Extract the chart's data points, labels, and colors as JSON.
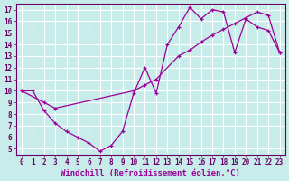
{
  "xlabel": "Windchill (Refroidissement éolien,°C)",
  "bg_color": "#c8ecea",
  "grid_color": "#ffffff",
  "line_color": "#990099",
  "xlim": [
    -0.5,
    23.5
  ],
  "ylim": [
    4.5,
    17.5
  ],
  "xticks": [
    0,
    1,
    2,
    3,
    4,
    5,
    6,
    7,
    8,
    9,
    10,
    11,
    12,
    13,
    14,
    15,
    16,
    17,
    18,
    19,
    20,
    21,
    22,
    23
  ],
  "yticks": [
    5,
    6,
    7,
    8,
    9,
    10,
    11,
    12,
    13,
    14,
    15,
    16,
    17
  ],
  "curve1_x": [
    0,
    1,
    2,
    3,
    4,
    5,
    6,
    7,
    8,
    9,
    10,
    11,
    12,
    13,
    14,
    15,
    16,
    17,
    18,
    19,
    20,
    21,
    22,
    23
  ],
  "curve1_y": [
    10,
    10,
    8.3,
    7.2,
    6.5,
    6.0,
    5.5,
    4.8,
    5.3,
    6.5,
    9.8,
    12.0,
    9.8,
    14.0,
    15.5,
    17.2,
    16.2,
    17.0,
    16.8,
    13.3,
    16.2,
    15.5,
    15.2,
    13.3
  ],
  "curve2_x": [
    0,
    2,
    3,
    10,
    11,
    12,
    14,
    15,
    16,
    17,
    18,
    19,
    20,
    21,
    22,
    23
  ],
  "curve2_y": [
    10,
    9.0,
    8.5,
    10.0,
    10.5,
    11.0,
    13.0,
    13.5,
    14.2,
    14.8,
    15.3,
    15.8,
    16.3,
    16.8,
    16.5,
    13.3
  ],
  "tick_fontsize": 5.5,
  "xlabel_fontsize": 6.5
}
